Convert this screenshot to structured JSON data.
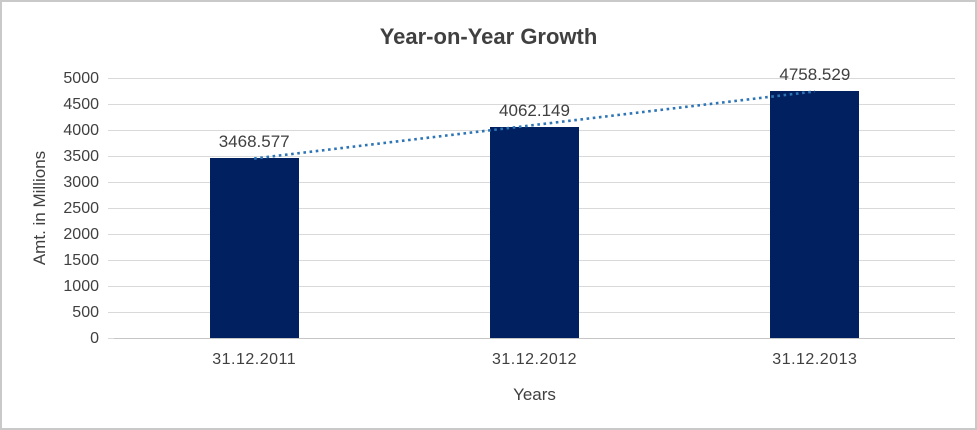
{
  "chart_data": {
    "type": "bar",
    "title": "Year-on-Year Growth",
    "xlabel": "Years",
    "ylabel": "Amt. in Millions",
    "categories": [
      "31.12.2011",
      "31.12.2012",
      "31.12.2013"
    ],
    "values": [
      3468.577,
      4062.149,
      4758.529
    ],
    "data_labels": [
      "3468.577",
      "4062.149",
      "4758.529"
    ],
    "ylim": [
      0,
      5000
    ],
    "ytick_step": 500,
    "yticks": [
      0,
      500,
      1000,
      1500,
      2000,
      2500,
      3000,
      3500,
      4000,
      4500,
      5000
    ],
    "grid": "horizontal",
    "legend": "none",
    "trendline": {
      "type": "linear",
      "style": "dotted",
      "color": "#2E75B6"
    },
    "colors": {
      "bar": "#002060",
      "gridline": "#D9D9D9",
      "baseline": "#C6C6C6",
      "text": "#404040",
      "border": "#C9C9C9",
      "background": "#FFFFFF"
    }
  }
}
